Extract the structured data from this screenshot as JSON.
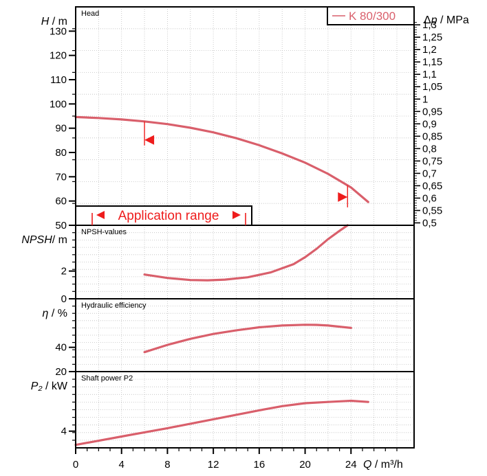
{
  "chart_data": {
    "type": "line",
    "series_name": "K 80/300",
    "curve_color": "#d95f6b",
    "marker_color": "#ee1c1c",
    "x_axis": {
      "label_symbol": "Q",
      "label_unit": " / m³/h",
      "ticks": [
        0,
        4,
        8,
        12,
        16,
        20,
        24
      ],
      "range": [
        0,
        29.5
      ]
    },
    "application_range": {
      "label": "Application range",
      "q_min": 6,
      "q_max": 23.7
    },
    "panels": [
      {
        "id": "head",
        "title": "Head",
        "ylabel_symbol": "H",
        "ylabel_unit": " / m",
        "ylim": [
          50,
          140
        ],
        "yticks": [
          50,
          60,
          70,
          80,
          90,
          100,
          110,
          120,
          130
        ],
        "right_axis": {
          "label_symbol": "Δp",
          "label_unit": " / MPa",
          "ticks": [
            "0,5",
            "0,55",
            "0,6",
            "0,65",
            "0,7",
            "0,75",
            "0,8",
            "0,85",
            "0,9",
            "0,95",
            "1",
            "1,05",
            "1,1",
            "1,15",
            "1,2",
            "1,25",
            "1,3"
          ],
          "factor_m_per_mpa": 102
        },
        "series": [
          {
            "name": "K 80/300",
            "x": [
              0,
              2,
              4,
              6,
              8,
              10,
              12,
              14,
              16,
              18,
              20,
              22,
              24,
              25.5
            ],
            "y": [
              94.6,
              94.2,
              93.6,
              92.8,
              91.7,
              90.2,
              88.3,
              85.9,
              83.0,
              79.6,
              75.8,
              71.2,
              65.6,
              59.6
            ]
          }
        ]
      },
      {
        "id": "npsh",
        "title": "NPSH-values",
        "ylabel_symbol": "NPSH",
        "ylabel_unit": "/ m",
        "ylim": [
          0,
          5.3
        ],
        "yticks": [
          0,
          2
        ],
        "series": [
          {
            "name": "K 80/300",
            "x": [
              6,
              8,
              10,
              11.5,
              13,
              15,
              17,
              19,
              20,
              21,
              22,
              23,
              23.7
            ],
            "y": [
              1.75,
              1.5,
              1.35,
              1.33,
              1.38,
              1.55,
              1.9,
              2.5,
              3.0,
              3.6,
              4.3,
              4.9,
              5.3
            ]
          }
        ]
      },
      {
        "id": "efficiency",
        "title": "Hydraulic efficiency",
        "ylabel_symbol": "η",
        "ylabel_unit": " / %",
        "ylim": [
          20,
          80
        ],
        "yticks": [
          20,
          40
        ],
        "series": [
          {
            "name": "K 80/300",
            "x": [
              6,
              8,
              10,
              12,
              14,
              16,
              18,
              20,
              21,
              22,
              24
            ],
            "y": [
              36,
              42,
              47,
              51,
              54,
              56.5,
              58,
              58.6,
              58.5,
              58,
              56
            ]
          }
        ]
      },
      {
        "id": "power",
        "title": "Shaft power P2",
        "ylabel_symbol": "P₂",
        "ylabel_unit": " / kW",
        "ylim": [
          2.6,
          9
        ],
        "yticks": [
          4
        ],
        "series": [
          {
            "name": "K 80/300",
            "x": [
              0,
              4,
              8,
              12,
              16,
              18,
              20,
              22,
              24,
              25.5
            ],
            "y": [
              2.85,
              3.55,
              4.25,
              5.0,
              5.75,
              6.1,
              6.35,
              6.45,
              6.55,
              6.45
            ]
          }
        ]
      }
    ]
  }
}
